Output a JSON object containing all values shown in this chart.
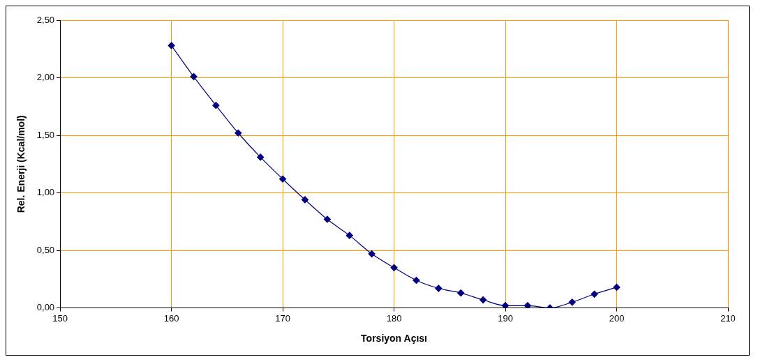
{
  "chart_data": {
    "type": "line",
    "xlabel": "Torsiyon Açısı",
    "ylabel": "Rel. Enerji (Kcal/mol)",
    "x": [
      160,
      162,
      164,
      166,
      168,
      170,
      172,
      174,
      176,
      178,
      180,
      182,
      184,
      186,
      188,
      190,
      192,
      194,
      196,
      198,
      200
    ],
    "series": [
      {
        "color": "#000080",
        "values": [
          2.28,
          2.01,
          1.76,
          1.52,
          1.31,
          1.12,
          0.94,
          0.77,
          0.63,
          0.47,
          0.35,
          0.24,
          0.17,
          0.13,
          0.07,
          0.02,
          0.02,
          0.0,
          0.05,
          0.12,
          0.18
        ]
      }
    ],
    "xlim": [
      150,
      210
    ],
    "xticks": [
      150,
      160,
      170,
      180,
      190,
      200,
      210
    ],
    "ylim": [
      0,
      2.5
    ],
    "yticks": [
      {
        "value": 0,
        "label": "0,00"
      },
      {
        "value": 0.5,
        "label": "0,50"
      },
      {
        "value": 1,
        "label": "1,00"
      },
      {
        "value": 1.5,
        "label": "1,50"
      },
      {
        "value": 2,
        "label": "2,00"
      },
      {
        "value": 2.5,
        "label": "2,50"
      }
    ],
    "grid": true,
    "marker": "diamond",
    "line_style": "solid",
    "legend": false
  }
}
